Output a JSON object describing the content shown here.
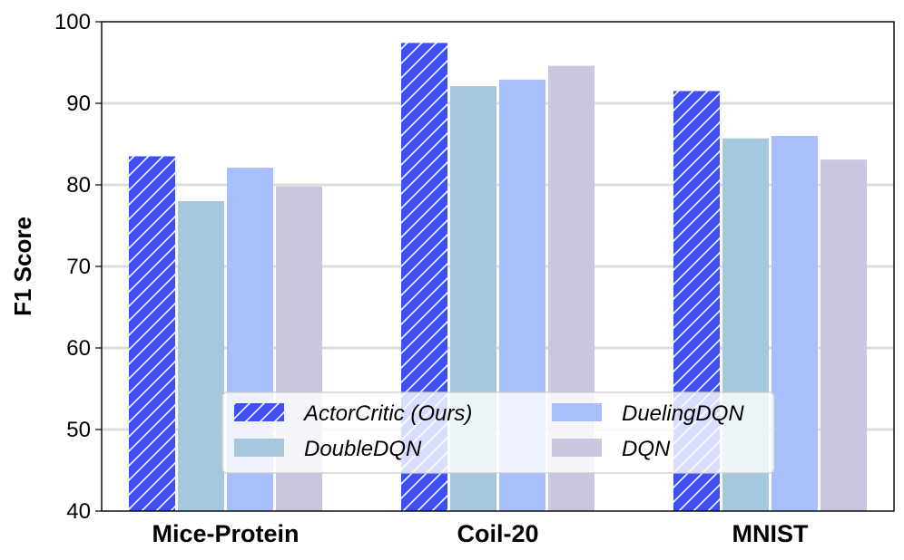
{
  "chart_data": {
    "type": "bar",
    "title": "",
    "xlabel": "",
    "ylabel": "F1 Score",
    "ylim": [
      40,
      100
    ],
    "yticks": [
      40,
      50,
      60,
      70,
      80,
      90,
      100
    ],
    "grid": "horizontal",
    "legend_position": "bottom-center",
    "categories": [
      "Mice-Protein",
      "Coil-20",
      "MNIST"
    ],
    "series": [
      {
        "name": "ActorCritic (Ours)",
        "color": "#3d4ff5",
        "hatch": true,
        "values": [
          83.5,
          97.4,
          91.5
        ]
      },
      {
        "name": "DoubleDQN",
        "color": "#a6c8dc",
        "hatch": false,
        "values": [
          78.0,
          92.1,
          85.7
        ]
      },
      {
        "name": "DuelingDQN",
        "color": "#a8bffb",
        "hatch": false,
        "values": [
          82.1,
          92.9,
          86.0
        ]
      },
      {
        "name": "DQN",
        "color": "#c9c6df",
        "hatch": false,
        "values": [
          79.8,
          94.6,
          83.1
        ]
      }
    ]
  }
}
